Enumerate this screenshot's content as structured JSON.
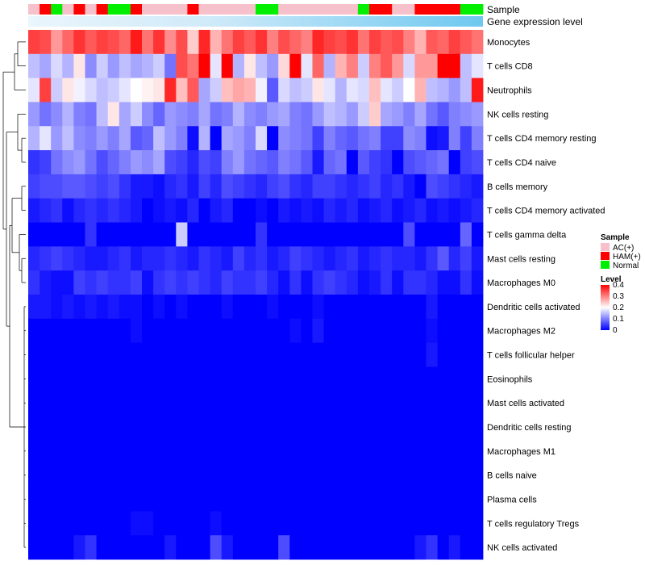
{
  "chart_data": {
    "type": "heatmap",
    "annotation_titles": {
      "sample": "Sample",
      "expression": "Gene expression level"
    },
    "sample_groups": [
      "AC(+)",
      "HAM(+)",
      "Normal",
      "AC(+)",
      "HAM(+)",
      "AC(+)",
      "HAM(+)",
      "Normal",
      "Normal",
      "HAM(+)",
      "AC(+)",
      "AC(+)",
      "AC(+)",
      "AC(+)",
      "HAM(+)",
      "AC(+)",
      "AC(+)",
      "AC(+)",
      "AC(+)",
      "AC(+)",
      "Normal",
      "Normal",
      "AC(+)",
      "AC(+)",
      "AC(+)",
      "AC(+)",
      "AC(+)",
      "AC(+)",
      "AC(+)",
      "Normal",
      "HAM(+)",
      "HAM(+)",
      "AC(+)",
      "AC(+)",
      "HAM(+)",
      "HAM(+)",
      "HAM(+)",
      "HAM(+)",
      "Normal",
      "Normal"
    ],
    "rows": [
      "Monocytes",
      "T cells CD8",
      "Neutrophils",
      "NK cells resting",
      "T cells CD4 memory resting",
      "T cells CD4 naive",
      "B cells memory",
      "T cells CD4 memory activated",
      "T cells gamma delta",
      "Mast cells resting",
      "Macrophages M0",
      "Dendritic cells activated",
      "Macrophages M2",
      "T cells follicular helper",
      "Eosinophils",
      "Mast cells activated",
      "Dendritic cells resting",
      "Macrophages M1",
      "B cells naive",
      "Plasma cells",
      "T cells regulatory  Tregs",
      "NK cells activated"
    ],
    "values": [
      [
        0.35,
        0.34,
        0.28,
        0.32,
        0.36,
        0.33,
        0.35,
        0.34,
        0.32,
        0.38,
        0.31,
        0.36,
        0.29,
        0.34,
        0.24,
        0.37,
        0.26,
        0.31,
        0.35,
        0.33,
        0.36,
        0.3,
        0.34,
        0.32,
        0.3,
        0.37,
        0.35,
        0.34,
        0.36,
        0.31,
        0.35,
        0.33,
        0.34,
        0.3,
        0.26,
        0.33,
        0.32,
        0.35,
        0.33,
        0.31
      ],
      [
        0.15,
        0.13,
        0.17,
        0.14,
        0.22,
        0.11,
        0.16,
        0.12,
        0.15,
        0.13,
        0.14,
        0.16,
        0.09,
        0.34,
        0.31,
        0.41,
        0.18,
        0.4,
        0.14,
        0.22,
        0.15,
        0.12,
        0.23,
        0.4,
        0.18,
        0.32,
        0.14,
        0.26,
        0.3,
        0.16,
        0.3,
        0.33,
        0.28,
        0.17,
        0.28,
        0.28,
        0.4,
        0.4,
        0.15,
        0.18
      ],
      [
        0.18,
        0.35,
        0.16,
        0.22,
        0.19,
        0.17,
        0.15,
        0.16,
        0.18,
        0.2,
        0.21,
        0.22,
        0.37,
        0.25,
        0.33,
        0.13,
        0.16,
        0.25,
        0.27,
        0.26,
        0.19,
        0.07,
        0.17,
        0.15,
        0.16,
        0.22,
        0.18,
        0.14,
        0.18,
        0.17,
        0.25,
        0.18,
        0.16,
        0.2,
        0.26,
        0.15,
        0.14,
        0.12,
        0.15,
        0.38
      ],
      [
        0.12,
        0.09,
        0.11,
        0.14,
        0.1,
        0.09,
        0.15,
        0.22,
        0.13,
        0.16,
        0.11,
        0.08,
        0.12,
        0.11,
        0.1,
        0.13,
        0.09,
        0.1,
        0.14,
        0.11,
        0.1,
        0.12,
        0.13,
        0.1,
        0.09,
        0.12,
        0.15,
        0.14,
        0.12,
        0.16,
        0.24,
        0.13,
        0.12,
        0.1,
        0.13,
        0.09,
        0.07,
        0.1,
        0.11,
        0.12
      ],
      [
        0.14,
        0.18,
        0.12,
        0.15,
        0.11,
        0.1,
        0.12,
        0.1,
        0.13,
        0.07,
        0.08,
        0.15,
        0.12,
        0.1,
        0.01,
        0.14,
        0.0,
        0.13,
        0.12,
        0.1,
        0.17,
        0.0,
        0.11,
        0.1,
        0.09,
        0.05,
        0.1,
        0.08,
        0.07,
        0.09,
        0.1,
        0.05,
        0.05,
        0.11,
        0.1,
        0.01,
        0.02,
        0.1,
        0.05,
        0.1
      ],
      [
        0.04,
        0.05,
        0.09,
        0.11,
        0.12,
        0.09,
        0.06,
        0.08,
        0.1,
        0.12,
        0.11,
        0.13,
        0.06,
        0.05,
        0.03,
        0.06,
        0.05,
        0.1,
        0.12,
        0.09,
        0.08,
        0.07,
        0.1,
        0.09,
        0.07,
        0.02,
        0.08,
        0.09,
        0.0,
        0.07,
        0.05,
        0.04,
        0.0,
        0.06,
        0.07,
        0.08,
        0.09,
        0.0,
        0.05,
        0.06
      ],
      [
        0.05,
        0.06,
        0.06,
        0.07,
        0.07,
        0.06,
        0.05,
        0.06,
        0.04,
        0.02,
        0.02,
        0.01,
        0.03,
        0.04,
        0.02,
        0.05,
        0.03,
        0.06,
        0.05,
        0.04,
        0.03,
        0.05,
        0.06,
        0.04,
        0.03,
        0.05,
        0.05,
        0.04,
        0.03,
        0.04,
        0.05,
        0.03,
        0.04,
        0.02,
        0.0,
        0.06,
        0.05,
        0.04,
        0.03,
        0.02
      ],
      [
        0.02,
        0.03,
        0.04,
        0.01,
        0.03,
        0.04,
        0.03,
        0.04,
        0.03,
        0.02,
        0.0,
        0.01,
        0.02,
        0.01,
        0.03,
        0.0,
        0.02,
        0.03,
        0.0,
        0.0,
        0.01,
        0.0,
        0.02,
        0.01,
        0.02,
        0.01,
        0.03,
        0.02,
        0.03,
        0.01,
        0.02,
        0.03,
        0.01,
        0.02,
        0.03,
        0.01,
        0.02,
        0.01,
        0.02,
        0.03
      ],
      [
        0.0,
        0.0,
        0.0,
        0.0,
        0.0,
        0.04,
        0.0,
        0.0,
        0.0,
        0.0,
        0.0,
        0.0,
        0.0,
        0.16,
        0.0,
        0.0,
        0.0,
        0.0,
        0.0,
        0.0,
        0.04,
        0.0,
        0.0,
        0.0,
        0.0,
        0.0,
        0.0,
        0.0,
        0.0,
        0.0,
        0.0,
        0.0,
        0.0,
        0.06,
        0.0,
        0.0,
        0.0,
        0.0,
        0.08,
        0.0
      ],
      [
        0.03,
        0.04,
        0.05,
        0.04,
        0.03,
        0.02,
        0.02,
        0.03,
        0.04,
        0.02,
        0.03,
        0.03,
        0.04,
        0.03,
        0.02,
        0.04,
        0.03,
        0.02,
        0.05,
        0.03,
        0.04,
        0.02,
        0.03,
        0.05,
        0.04,
        0.03,
        0.02,
        0.03,
        0.04,
        0.02,
        0.03,
        0.04,
        0.03,
        0.03,
        0.02,
        0.04,
        0.07,
        0.03,
        0.05,
        0.02
      ],
      [
        0.04,
        0.02,
        0.01,
        0.01,
        0.05,
        0.04,
        0.05,
        0.04,
        0.04,
        0.05,
        0.01,
        0.04,
        0.05,
        0.04,
        0.05,
        0.04,
        0.03,
        0.05,
        0.04,
        0.04,
        0.05,
        0.03,
        0.01,
        0.04,
        0.01,
        0.04,
        0.05,
        0.04,
        0.03,
        0.01,
        0.02,
        0.04,
        0.01,
        0.04,
        0.04,
        0.03,
        0.01,
        0.01,
        0.04,
        0.01
      ],
      [
        0.02,
        0.02,
        0.01,
        0.02,
        0.01,
        0.02,
        0.01,
        0.02,
        0.01,
        0.01,
        0.0,
        0.01,
        0.0,
        0.01,
        0.0,
        0.0,
        0.0,
        0.01,
        0.0,
        0.0,
        0.0,
        0.01,
        0.0,
        0.0,
        0.0,
        0.01,
        0.0,
        0.0,
        0.0,
        0.0,
        0.0,
        0.0,
        0.0,
        0.0,
        0.0,
        0.02,
        0.0,
        0.0,
        0.0,
        0.0
      ],
      [
        0.0,
        0.0,
        0.0,
        0.0,
        0.0,
        0.0,
        0.0,
        0.0,
        0.0,
        0.01,
        0.0,
        0.0,
        0.0,
        0.0,
        0.0,
        0.0,
        0.0,
        0.0,
        0.0,
        0.0,
        0.0,
        0.0,
        0.0,
        0.01,
        0.0,
        0.02,
        0.0,
        0.0,
        0.0,
        0.0,
        0.0,
        0.0,
        0.0,
        0.0,
        0.0,
        0.01,
        0.0,
        0.0,
        0.0,
        0.0
      ],
      [
        0.0,
        0.0,
        0.0,
        0.0,
        0.0,
        0.0,
        0.0,
        0.0,
        0.0,
        0.0,
        0.0,
        0.0,
        0.0,
        0.0,
        0.0,
        0.0,
        0.0,
        0.0,
        0.0,
        0.0,
        0.0,
        0.0,
        0.0,
        0.0,
        0.0,
        0.0,
        0.0,
        0.0,
        0.0,
        0.0,
        0.0,
        0.0,
        0.0,
        0.0,
        0.0,
        0.02,
        0.0,
        0.0,
        0.0,
        0.0
      ],
      [
        0.0,
        0.0,
        0.0,
        0.0,
        0.0,
        0.0,
        0.0,
        0.0,
        0.0,
        0.0,
        0.0,
        0.0,
        0.0,
        0.0,
        0.0,
        0.0,
        0.0,
        0.0,
        0.0,
        0.0,
        0.0,
        0.0,
        0.0,
        0.0,
        0.0,
        0.0,
        0.0,
        0.0,
        0.0,
        0.0,
        0.0,
        0.0,
        0.0,
        0.0,
        0.0,
        0.0,
        0.0,
        0.0,
        0.0,
        0.0
      ],
      [
        0.0,
        0.0,
        0.0,
        0.0,
        0.0,
        0.0,
        0.0,
        0.0,
        0.0,
        0.0,
        0.0,
        0.0,
        0.0,
        0.0,
        0.0,
        0.0,
        0.0,
        0.0,
        0.0,
        0.0,
        0.0,
        0.0,
        0.0,
        0.0,
        0.0,
        0.0,
        0.0,
        0.0,
        0.0,
        0.0,
        0.0,
        0.0,
        0.0,
        0.0,
        0.0,
        0.0,
        0.0,
        0.0,
        0.0,
        0.0
      ],
      [
        0.0,
        0.0,
        0.0,
        0.0,
        0.0,
        0.0,
        0.0,
        0.0,
        0.0,
        0.0,
        0.0,
        0.0,
        0.0,
        0.0,
        0.0,
        0.0,
        0.0,
        0.0,
        0.0,
        0.0,
        0.0,
        0.0,
        0.0,
        0.0,
        0.0,
        0.0,
        0.0,
        0.0,
        0.0,
        0.0,
        0.0,
        0.0,
        0.0,
        0.0,
        0.0,
        0.0,
        0.0,
        0.0,
        0.0,
        0.0
      ],
      [
        0.0,
        0.0,
        0.0,
        0.0,
        0.0,
        0.0,
        0.0,
        0.0,
        0.0,
        0.0,
        0.0,
        0.0,
        0.0,
        0.0,
        0.0,
        0.0,
        0.0,
        0.0,
        0.0,
        0.0,
        0.0,
        0.0,
        0.0,
        0.0,
        0.0,
        0.0,
        0.0,
        0.0,
        0.0,
        0.0,
        0.0,
        0.0,
        0.0,
        0.0,
        0.0,
        0.0,
        0.0,
        0.0,
        0.0,
        0.0
      ],
      [
        0.0,
        0.0,
        0.0,
        0.0,
        0.0,
        0.0,
        0.0,
        0.0,
        0.0,
        0.0,
        0.0,
        0.0,
        0.0,
        0.0,
        0.0,
        0.0,
        0.0,
        0.0,
        0.0,
        0.0,
        0.0,
        0.0,
        0.0,
        0.0,
        0.0,
        0.0,
        0.0,
        0.0,
        0.0,
        0.0,
        0.0,
        0.0,
        0.0,
        0.0,
        0.0,
        0.0,
        0.0,
        0.0,
        0.0,
        0.0
      ],
      [
        0.0,
        0.0,
        0.0,
        0.0,
        0.0,
        0.0,
        0.0,
        0.0,
        0.0,
        0.0,
        0.0,
        0.0,
        0.0,
        0.0,
        0.0,
        0.0,
        0.0,
        0.0,
        0.0,
        0.0,
        0.0,
        0.0,
        0.0,
        0.0,
        0.0,
        0.0,
        0.0,
        0.0,
        0.0,
        0.0,
        0.0,
        0.0,
        0.0,
        0.0,
        0.0,
        0.0,
        0.0,
        0.0,
        0.0,
        0.0
      ],
      [
        0.0,
        0.0,
        0.0,
        0.0,
        0.0,
        0.0,
        0.0,
        0.0,
        0.0,
        0.01,
        0.01,
        0.0,
        0.0,
        0.0,
        0.0,
        0.0,
        0.01,
        0.0,
        0.0,
        0.0,
        0.0,
        0.0,
        0.0,
        0.0,
        0.0,
        0.0,
        0.0,
        0.0,
        0.0,
        0.0,
        0.0,
        0.0,
        0.0,
        0.0,
        0.0,
        0.0,
        0.0,
        0.0,
        0.0,
        0.0
      ],
      [
        0.0,
        0.0,
        0.0,
        0.0,
        0.02,
        0.04,
        0.0,
        0.0,
        0.0,
        0.0,
        0.0,
        0.0,
        0.02,
        0.0,
        0.0,
        0.0,
        0.06,
        0.02,
        0.0,
        0.0,
        0.0,
        0.0,
        0.06,
        0.0,
        0.0,
        0.0,
        0.0,
        0.0,
        0.0,
        0.0,
        0.0,
        0.0,
        0.0,
        0.0,
        0.02,
        0.04,
        0.0,
        0.02,
        0.0,
        0.0
      ]
    ],
    "legend": {
      "sample_title": "Sample",
      "sample_entries": [
        {
          "label": "AC(+)",
          "color": "#f7c1cc"
        },
        {
          "label": "HAM(+)",
          "color": "#ff0000"
        },
        {
          "label": "Normal",
          "color": "#00ee00"
        }
      ],
      "level_title": "Level",
      "level_ticks": [
        0.4,
        0.3,
        0.2,
        0.1,
        0
      ],
      "range": [
        0,
        0.4
      ]
    },
    "colors": {
      "low": "#0000ff",
      "mid": "#ffffff",
      "high": "#ff0000",
      "expression_bar": "#6ec8f0",
      "expression_fade": "#cfeaf9"
    }
  }
}
